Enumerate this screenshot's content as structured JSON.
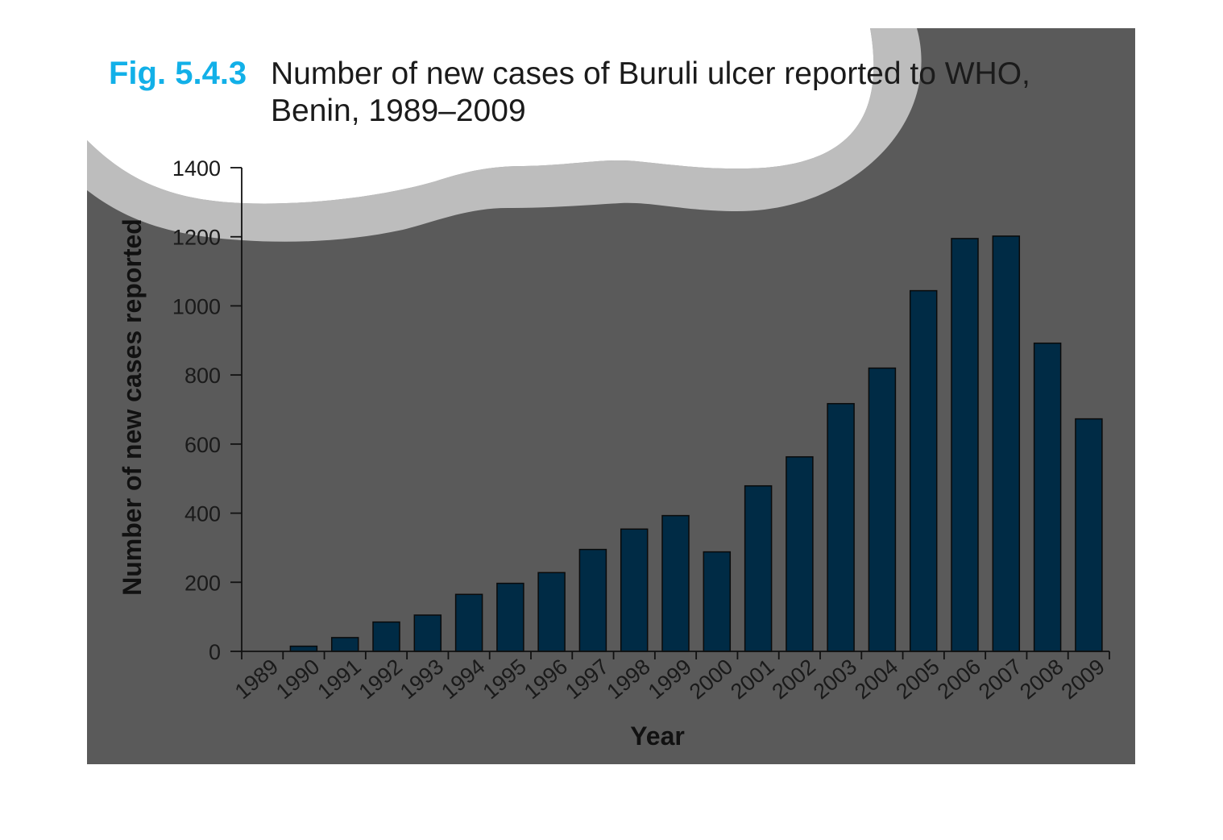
{
  "figure": {
    "number": "Fig. 5.4.3",
    "title_line1": "Number of new cases of Buruli ulcer reported to WHO,",
    "title_line2": "Benin, 1989–2009"
  },
  "colors": {
    "background_dark": "#5a5a5a",
    "wave_light": "#bdbdbd",
    "bar_fill": "#002b45",
    "figure_number": "#12b0e8"
  },
  "chart_data": {
    "type": "bar",
    "title": "Number of new cases of Buruli ulcer reported to WHO, Benin, 1989–2009",
    "xlabel": "Year",
    "ylabel": "Number of new cases reported",
    "ylim": [
      0,
      1400
    ],
    "yticks": [
      0,
      200,
      400,
      600,
      800,
      1000,
      1200,
      1400
    ],
    "grid": false,
    "categories": [
      "1989",
      "1990",
      "1991",
      "1992",
      "1993",
      "1994",
      "1995",
      "1996",
      "1997",
      "1998",
      "1999",
      "2000",
      "2001",
      "2002",
      "2003",
      "2004",
      "2005",
      "2006",
      "2007",
      "2008",
      "2009"
    ],
    "values": [
      0,
      15,
      40,
      85,
      105,
      165,
      197,
      228,
      295,
      354,
      393,
      288,
      479,
      563,
      717,
      820,
      1044,
      1195,
      1202,
      892,
      673
    ]
  }
}
